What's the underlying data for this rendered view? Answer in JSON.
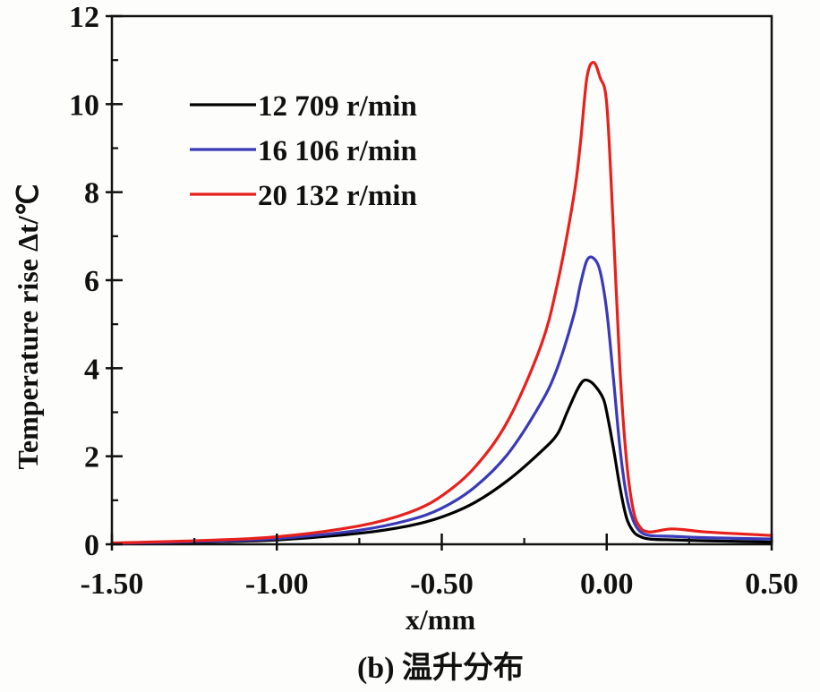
{
  "chart_data": {
    "type": "line",
    "xlabel": "x/mm",
    "ylabel": "Temperature rise Δt/℃",
    "caption": "(b) 温升分布",
    "xlim": [
      -1.5,
      0.5
    ],
    "ylim": [
      0,
      12
    ],
    "xticks": [
      "-1.50",
      "-1.00",
      "-0.50",
      "0.00",
      "0.50"
    ],
    "yticks": [
      "0",
      "2",
      "4",
      "6",
      "8",
      "10",
      "12"
    ],
    "grid": false,
    "legend_position": "top-left",
    "series": [
      {
        "name": "12 709 r/min",
        "color": "#000000",
        "x": [
          -1.5,
          -1.25,
          -1.0,
          -0.75,
          -0.6,
          -0.5,
          -0.4,
          -0.3,
          -0.2,
          -0.15,
          -0.12,
          -0.09,
          -0.07,
          -0.05,
          -0.03,
          -0.01,
          0.0,
          0.02,
          0.04,
          0.06,
          0.08,
          0.1,
          0.13,
          0.2,
          0.3,
          0.5
        ],
        "y": [
          0.02,
          0.05,
          0.1,
          0.25,
          0.42,
          0.62,
          0.95,
          1.45,
          2.1,
          2.5,
          3.0,
          3.5,
          3.72,
          3.7,
          3.55,
          3.3,
          3.0,
          2.2,
          1.3,
          0.6,
          0.3,
          0.18,
          0.12,
          0.1,
          0.08,
          0.05
        ]
      },
      {
        "name": "16 106 r/min",
        "color": "#3a3ab8",
        "x": [
          -1.5,
          -1.25,
          -1.0,
          -0.75,
          -0.6,
          -0.5,
          -0.4,
          -0.3,
          -0.2,
          -0.15,
          -0.1,
          -0.08,
          -0.06,
          -0.04,
          -0.02,
          0.0,
          0.02,
          0.04,
          0.06,
          0.08,
          0.1,
          0.13,
          0.2,
          0.3,
          0.5
        ],
        "y": [
          0.02,
          0.06,
          0.13,
          0.32,
          0.55,
          0.82,
          1.3,
          2.05,
          3.2,
          4.0,
          5.2,
          5.9,
          6.45,
          6.5,
          6.2,
          5.3,
          3.8,
          2.2,
          1.1,
          0.55,
          0.3,
          0.2,
          0.18,
          0.15,
          0.12
        ]
      },
      {
        "name": "20 132 r/min",
        "color": "#e8201c",
        "x": [
          -1.5,
          -1.25,
          -1.0,
          -0.75,
          -0.6,
          -0.5,
          -0.4,
          -0.3,
          -0.2,
          -0.15,
          -0.1,
          -0.08,
          -0.06,
          -0.04,
          -0.02,
          0.0,
          0.02,
          0.04,
          0.06,
          0.08,
          0.1,
          0.13,
          0.2,
          0.3,
          0.5
        ],
        "y": [
          0.03,
          0.08,
          0.17,
          0.42,
          0.72,
          1.1,
          1.75,
          2.8,
          4.5,
          5.9,
          7.9,
          9.1,
          10.6,
          10.95,
          10.6,
          10.0,
          7.2,
          4.0,
          1.9,
          0.8,
          0.4,
          0.28,
          0.35,
          0.28,
          0.2
        ]
      }
    ]
  }
}
